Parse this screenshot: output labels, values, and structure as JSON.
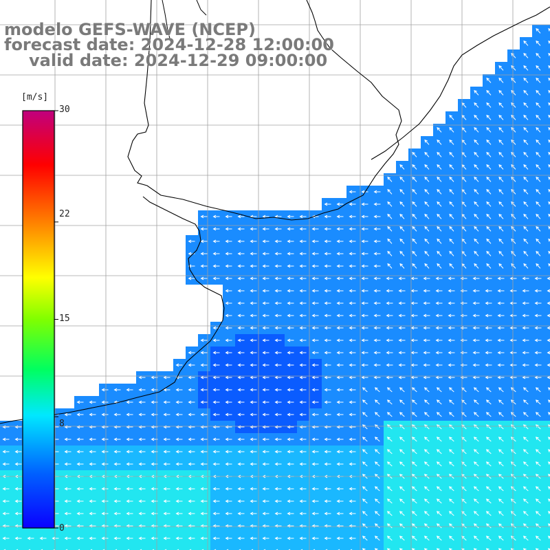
{
  "header": {
    "line1": "modelo GEFS-WAVE (NCEP)",
    "line2": "forecast date: 2024-12-28 12:00:00",
    "line3": "valid date: 2024-12-29 09:00:00"
  },
  "colorbar": {
    "units": "[m/s]",
    "ticks": [
      "0",
      "8",
      "15",
      "22",
      "30"
    ],
    "range": [
      0,
      30
    ],
    "palette": [
      "#0a00ff",
      "#0080ff",
      "#00ffff",
      "#00ff00",
      "#ffff00",
      "#ff8000",
      "#ff0000",
      "#c0007e"
    ]
  },
  "map": {
    "field": "wind speed",
    "arrow_color": "#ffffff",
    "grid_color": "#a0a0a0",
    "coast_color": "#000000",
    "ocean_colors": [
      "#0a5cff",
      "#1a8cff",
      "#1ab8ff",
      "#22e6f0"
    ]
  }
}
